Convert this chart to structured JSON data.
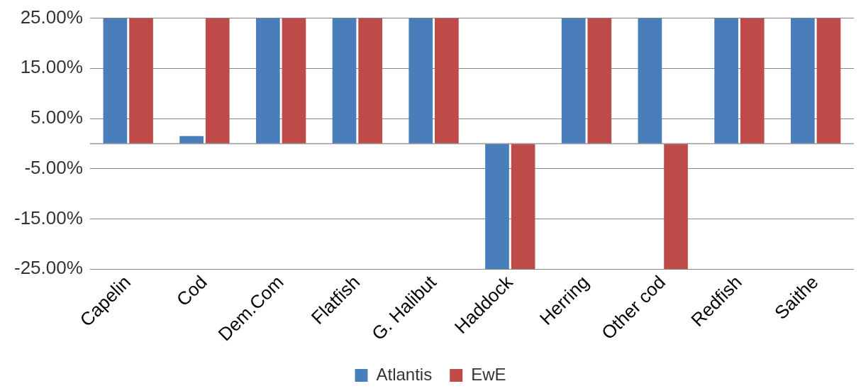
{
  "chart_data": {
    "type": "bar",
    "categories": [
      "Capelin",
      "Cod",
      "Dem.Com",
      "Flatfish",
      "G. Halibut",
      "Haddock",
      "Herring",
      "Other cod",
      "Redfish",
      "Saithe"
    ],
    "series": [
      {
        "name": "Atlantis",
        "color": "#4a7ebb",
        "values": [
          25,
          1.5,
          25,
          25,
          25,
          -25,
          25,
          25,
          25,
          25
        ]
      },
      {
        "name": "EwE",
        "color": "#be4b48",
        "values": [
          25,
          25,
          25,
          25,
          25,
          -25,
          25,
          -25,
          25,
          25
        ]
      }
    ],
    "ylim": [
      -25,
      25
    ],
    "yticks": [
      {
        "value": -25,
        "label": "-25.00%"
      },
      {
        "value": -15,
        "label": "-15.00%"
      },
      {
        "value": -5,
        "label": "-5.00%"
      },
      {
        "value": 5,
        "label": "5.00%"
      },
      {
        "value": 15,
        "label": "15.00%"
      },
      {
        "value": 25,
        "label": "25.00%"
      }
    ],
    "grid": "y",
    "legend": "bottom"
  }
}
